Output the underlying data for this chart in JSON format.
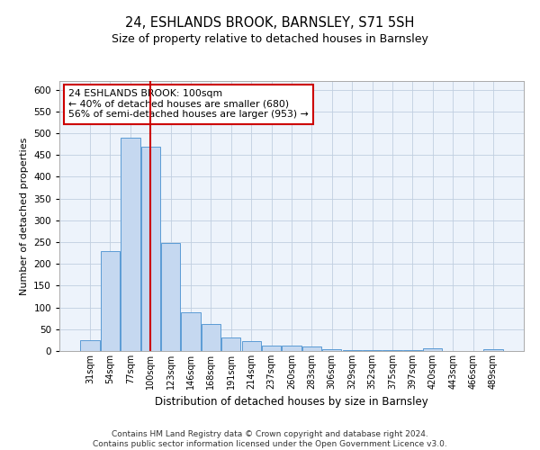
{
  "title1": "24, ESHLANDS BROOK, BARNSLEY, S71 5SH",
  "title2": "Size of property relative to detached houses in Barnsley",
  "xlabel": "Distribution of detached houses by size in Barnsley",
  "ylabel": "Number of detached properties",
  "footer": "Contains HM Land Registry data © Crown copyright and database right 2024.\nContains public sector information licensed under the Open Government Licence v3.0.",
  "categories": [
    "31sqm",
    "54sqm",
    "77sqm",
    "100sqm",
    "123sqm",
    "146sqm",
    "168sqm",
    "191sqm",
    "214sqm",
    "237sqm",
    "260sqm",
    "283sqm",
    "306sqm",
    "329sqm",
    "352sqm",
    "375sqm",
    "397sqm",
    "420sqm",
    "443sqm",
    "466sqm",
    "489sqm"
  ],
  "values": [
    25,
    230,
    490,
    470,
    248,
    88,
    62,
    30,
    22,
    12,
    12,
    10,
    5,
    3,
    3,
    3,
    3,
    7,
    1,
    1,
    5
  ],
  "bar_color": "#c5d8f0",
  "bar_edge_color": "#5b9bd5",
  "highlight_index": 3,
  "highlight_line_color": "#cc0000",
  "annotation_text": "24 ESHLANDS BROOK: 100sqm\n← 40% of detached houses are smaller (680)\n56% of semi-detached houses are larger (953) →",
  "annotation_box_color": "#ffffff",
  "annotation_box_edge_color": "#cc0000",
  "ylim": [
    0,
    620
  ],
  "yticks": [
    0,
    50,
    100,
    150,
    200,
    250,
    300,
    350,
    400,
    450,
    500,
    550,
    600
  ],
  "background_color": "#ffffff",
  "grid_color": "#c0cfe0",
  "ax_facecolor": "#edf3fb"
}
